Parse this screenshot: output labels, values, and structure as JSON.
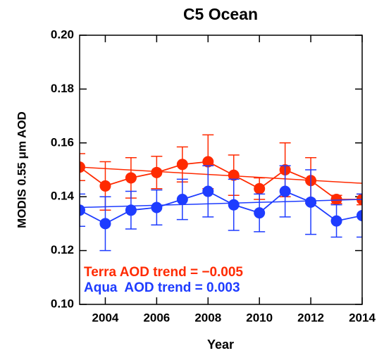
{
  "chart_data": {
    "type": "line",
    "title": "C5 Ocean",
    "x_label": "Year",
    "y_label": "MODIS 0.55 μm AOD",
    "x": [
      2003,
      2004,
      2005,
      2006,
      2007,
      2008,
      2009,
      2010,
      2011,
      2012,
      2013,
      2014
    ],
    "xlim": [
      2003,
      2014
    ],
    "xticks": [
      2004,
      2006,
      2008,
      2010,
      2012,
      2014
    ],
    "ylim": [
      0.1,
      0.2
    ],
    "yticks": [
      {
        "value": 0.1,
        "label": "0.10"
      },
      {
        "value": 0.12,
        "label": "0.12"
      },
      {
        "value": 0.14,
        "label": "0.14"
      },
      {
        "value": 0.16,
        "label": "0.16"
      },
      {
        "value": 0.18,
        "label": "0.18"
      },
      {
        "value": 0.2,
        "label": "0.20"
      }
    ],
    "series": [
      {
        "name": "Terra",
        "color": "#ff2a00",
        "values": [
          0.151,
          0.144,
          0.147,
          0.149,
          0.152,
          0.153,
          0.148,
          0.143,
          0.15,
          0.146,
          0.139,
          0.139
        ],
        "errors": [
          0.005,
          0.009,
          0.0075,
          0.006,
          0.0065,
          0.01,
          0.0075,
          0.004,
          0.01,
          0.0085,
          0.0015,
          0.002
        ],
        "trend": [
          0.151,
          0.145
        ]
      },
      {
        "name": "Aqua",
        "color": "#1e3cff",
        "values": [
          0.135,
          0.13,
          0.135,
          0.136,
          0.139,
          0.142,
          0.137,
          0.134,
          0.142,
          0.138,
          0.131,
          0.133
        ],
        "errors": [
          0.006,
          0.01,
          0.007,
          0.0065,
          0.0075,
          0.0095,
          0.0095,
          0.007,
          0.0095,
          0.012,
          0.006,
          0.008
        ],
        "trend": [
          0.136,
          0.139
        ]
      }
    ],
    "annotations": [
      {
        "text": "Terra AOD trend = −0.005",
        "color": "#ff2a00"
      },
      {
        "text": "Aqua  AOD trend = 0.003",
        "color": "#1e3cff"
      }
    ]
  }
}
